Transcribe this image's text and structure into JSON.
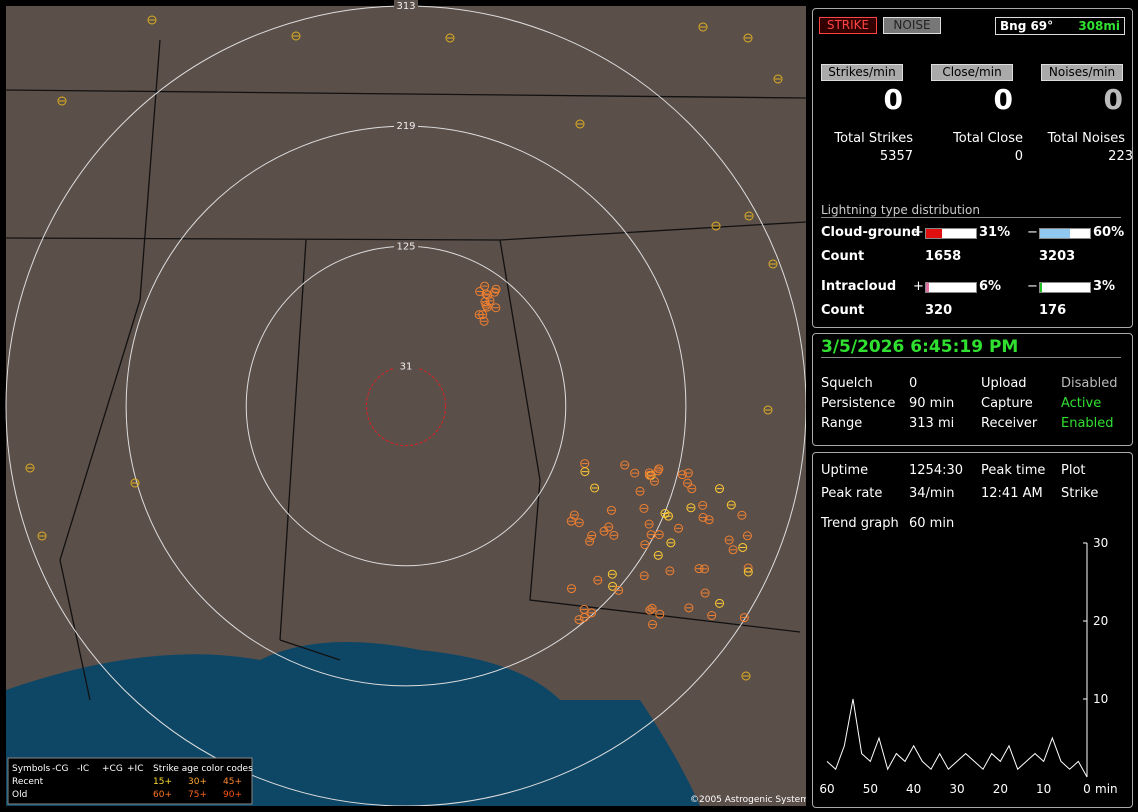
{
  "map": {
    "range_rings": [
      313,
      219,
      125,
      31
    ],
    "legend": {
      "symbols": "Symbols",
      "headers": [
        "-CG",
        "-IC",
        "+CG",
        "+IC"
      ],
      "age_title": "Strike age color codes",
      "recent": "Recent",
      "old": "Old",
      "recent_ages": [
        "15+",
        "30+",
        "45+"
      ],
      "old_ages": [
        "60+",
        "75+",
        "90+"
      ]
    },
    "copyright": "©2005 Astrogenic Systems"
  },
  "header": {
    "strike": "STRIKE",
    "noise": "NOISE",
    "bearing": "Bng 69°",
    "distance": "308mi"
  },
  "rates": [
    {
      "label": "Strikes/min",
      "value": 0
    },
    {
      "label": "Close/min",
      "value": 0
    },
    {
      "label": "Noises/min",
      "value": 0
    }
  ],
  "totals": [
    {
      "label": "Total Strikes",
      "value": 5357
    },
    {
      "label": "Total Close",
      "value": 0
    },
    {
      "label": "Total Noises",
      "value": 223
    }
  ],
  "distribution": {
    "title": "Lightning type distribution",
    "rows": [
      {
        "name": "Cloud-ground",
        "count_label": "Count",
        "plus": {
          "sign": "+",
          "value": 31,
          "label": "31%",
          "color": "#e01010",
          "count": 1658
        },
        "minus": {
          "sign": "−",
          "value": 60,
          "label": "60%",
          "color": "#90c8f0",
          "count": 3203
        }
      },
      {
        "name": "Intracloud",
        "count_label": "Count",
        "plus": {
          "sign": "+",
          "value": 6,
          "label": "6%",
          "color": "#e070a0",
          "count": 320
        },
        "minus": {
          "sign": "−",
          "value": 3,
          "label": "3%",
          "color": "#20c020",
          "count": 176
        }
      }
    ]
  },
  "datetime": "3/5/2026 6:45:19 PM",
  "settings": [
    [
      "Squelch",
      "0",
      "Upload",
      "Disabled"
    ],
    [
      "Persistence",
      "90 min",
      "Capture",
      "Active"
    ],
    [
      "Range",
      "313 mi",
      "Receiver",
      "Enabled"
    ]
  ],
  "stats": [
    [
      "Uptime",
      "1254:30",
      "Peak time",
      "Plot"
    ],
    [
      "Peak rate",
      "34/min",
      "12:41 AM",
      "Strike"
    ]
  ],
  "trend": {
    "label": "Trend graph",
    "window": "60 min",
    "xlabel": "min",
    "xlim": [
      60,
      0
    ],
    "xticks": [
      60,
      50,
      40,
      30,
      20,
      10,
      0
    ],
    "ylim": [
      0,
      30
    ],
    "yticks": [
      10,
      20,
      30
    ],
    "x": [
      60,
      58,
      56,
      54,
      52,
      50,
      48,
      46,
      44,
      42,
      40,
      38,
      36,
      34,
      32,
      30,
      28,
      26,
      24,
      22,
      20,
      18,
      16,
      14,
      12,
      10,
      8,
      6,
      4,
      2,
      0
    ],
    "series": [
      {
        "name": "Strike",
        "color": "#ffffff",
        "values": [
          2,
          1,
          4,
          10,
          3,
          2,
          5,
          1,
          3,
          2,
          4,
          2,
          1,
          3,
          1,
          2,
          3,
          2,
          1,
          3,
          2,
          4,
          1,
          2,
          3,
          2,
          5,
          2,
          1,
          2,
          0
        ]
      }
    ]
  }
}
